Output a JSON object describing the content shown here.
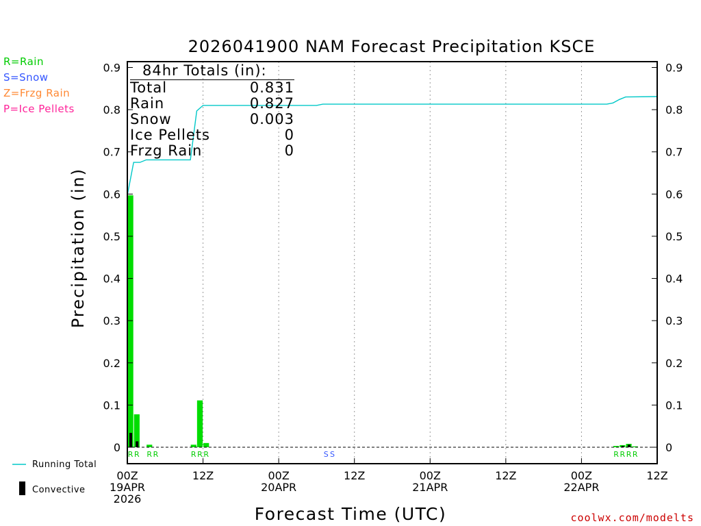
{
  "chart_data": {
    "type": "bar",
    "title": "2026041900 NAM Forecast Precipitation KSCE",
    "xlabel": "Forecast Time (UTC)",
    "ylabel": "Precipitation (in)",
    "ylim": [
      0,
      0.92
    ],
    "xlim_hours": [
      0,
      84
    ],
    "yticks": [
      "0",
      "0.1",
      "0.2",
      "0.3",
      "0.4",
      "0.5",
      "0.6",
      "0.7",
      "0.8",
      "0.9"
    ],
    "xticks": [
      {
        "hour": 0,
        "line1": "00Z",
        "line2": "19APR",
        "line3": "2026"
      },
      {
        "hour": 12,
        "line1": "12Z",
        "line2": "",
        "line3": ""
      },
      {
        "hour": 24,
        "line1": "00Z",
        "line2": "20APR",
        "line3": ""
      },
      {
        "hour": 36,
        "line1": "12Z",
        "line2": "",
        "line3": ""
      },
      {
        "hour": 48,
        "line1": "00Z",
        "line2": "21APR",
        "line3": ""
      },
      {
        "hour": 60,
        "line1": "12Z",
        "line2": "",
        "line3": ""
      },
      {
        "hour": 72,
        "line1": "00Z",
        "line2": "22APR",
        "line3": ""
      },
      {
        "hour": 84,
        "line1": "12Z",
        "line2": "",
        "line3": ""
      }
    ],
    "series": [
      {
        "name": "Rain",
        "color": "#00dd00",
        "points": [
          [
            0,
            0.597
          ],
          [
            1,
            0.078
          ],
          [
            3,
            0.006
          ],
          [
            10,
            0.006
          ],
          [
            11,
            0.111
          ],
          [
            12,
            0.01
          ],
          [
            77,
            0.003
          ],
          [
            78,
            0.005
          ],
          [
            79,
            0.008
          ],
          [
            80,
            0.002
          ]
        ]
      },
      {
        "name": "Convective",
        "color": "#000000",
        "points": [
          [
            0,
            0.034
          ],
          [
            1,
            0.014
          ],
          [
            78,
            0.003
          ],
          [
            79,
            0.006
          ]
        ]
      },
      {
        "name": "Running Total",
        "color": "#00c8c8",
        "type": "line",
        "points": [
          [
            0,
            0.597
          ],
          [
            1,
            0.675
          ],
          [
            2,
            0.675
          ],
          [
            3,
            0.681
          ],
          [
            10,
            0.681
          ],
          [
            11,
            0.797
          ],
          [
            12,
            0.81
          ],
          [
            20,
            0.81
          ],
          [
            30,
            0.81
          ],
          [
            31,
            0.813
          ],
          [
            32,
            0.813
          ],
          [
            76,
            0.813
          ],
          [
            77,
            0.816
          ],
          [
            78,
            0.824
          ],
          [
            79,
            0.83
          ],
          [
            84,
            0.831
          ]
        ]
      }
    ],
    "ptype_markers": [
      {
        "hour": 0,
        "label": "R",
        "kind": "rain"
      },
      {
        "hour": 1,
        "label": "R",
        "kind": "rain"
      },
      {
        "hour": 3,
        "label": "R",
        "kind": "rain"
      },
      {
        "hour": 4,
        "label": "R",
        "kind": "rain"
      },
      {
        "hour": 10,
        "label": "R",
        "kind": "rain"
      },
      {
        "hour": 11,
        "label": "R",
        "kind": "rain"
      },
      {
        "hour": 12,
        "label": "R",
        "kind": "rain"
      },
      {
        "hour": 31,
        "label": "S",
        "kind": "snow"
      },
      {
        "hour": 32,
        "label": "S",
        "kind": "snow"
      },
      {
        "hour": 77,
        "label": "R",
        "kind": "rain"
      },
      {
        "hour": 78,
        "label": "R",
        "kind": "rain"
      },
      {
        "hour": 79,
        "label": "R",
        "kind": "rain"
      },
      {
        "hour": 80,
        "label": "R",
        "kind": "rain"
      }
    ],
    "totals": {
      "title": "84hr Totals (in):",
      "rows": [
        {
          "label": "Total",
          "value": "0.831"
        },
        {
          "label": "Rain",
          "value": "0.827"
        },
        {
          "label": "Snow",
          "value": "0.003"
        },
        {
          "label": "Ice Pellets",
          "value": "0"
        },
        {
          "label": "Frzg Rain",
          "value": "0"
        }
      ]
    },
    "legend_left": [
      {
        "text": "R=Rain",
        "color": "#00cc00"
      },
      {
        "text": "S=Snow",
        "color": "#3355ff"
      },
      {
        "text": "Z=Frzg Rain",
        "color": "#ff8833"
      },
      {
        "text": "P=Ice Pellets",
        "color": "#ff2299"
      }
    ],
    "legend_bottom": {
      "running_total": "Running Total",
      "convective": "Convective"
    },
    "credit": "coolwx.com/modelts"
  }
}
